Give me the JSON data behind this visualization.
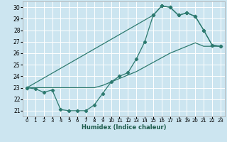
{
  "title": "",
  "xlabel": "Humidex (Indice chaleur)",
  "bg_color": "#cce5f0",
  "grid_color": "#ffffff",
  "line_color": "#2d7a6f",
  "xlim": [
    -0.5,
    23.5
  ],
  "ylim": [
    20.5,
    30.5
  ],
  "xticks": [
    0,
    1,
    2,
    3,
    4,
    5,
    6,
    7,
    8,
    9,
    10,
    11,
    12,
    13,
    14,
    15,
    16,
    17,
    18,
    19,
    20,
    21,
    22,
    23
  ],
  "yticks": [
    21,
    22,
    23,
    24,
    25,
    26,
    27,
    28,
    29,
    30
  ],
  "curve1_x": [
    0,
    1,
    2,
    3,
    4,
    5,
    6,
    7,
    8,
    9,
    10,
    11,
    12,
    13,
    14,
    15,
    16,
    17,
    18,
    19,
    20,
    21,
    22,
    23
  ],
  "curve1_y": [
    23.0,
    22.9,
    22.6,
    22.8,
    21.1,
    21.0,
    21.0,
    21.0,
    21.5,
    22.5,
    23.5,
    24.0,
    24.3,
    25.5,
    27.0,
    29.3,
    30.1,
    30.0,
    29.3,
    29.5,
    29.2,
    28.0,
    26.7,
    26.6
  ],
  "curve2_x": [
    0,
    1,
    2,
    3,
    4,
    5,
    6,
    7,
    8,
    9,
    10,
    11,
    12,
    13,
    14,
    15,
    16,
    17,
    18,
    19,
    20,
    21,
    22,
    23
  ],
  "curve2_y": [
    23.0,
    23.0,
    23.0,
    23.0,
    23.0,
    23.0,
    23.0,
    23.0,
    23.0,
    23.2,
    23.5,
    23.8,
    24.1,
    24.4,
    24.8,
    25.2,
    25.6,
    26.0,
    26.3,
    26.6,
    26.9,
    26.6,
    26.6,
    26.6
  ],
  "curve3_x": [
    0,
    15,
    16,
    17,
    18,
    19,
    20,
    21,
    22,
    23
  ],
  "curve3_y": [
    23.0,
    29.3,
    30.1,
    30.0,
    29.3,
    29.5,
    29.2,
    28.0,
    26.7,
    26.6
  ]
}
